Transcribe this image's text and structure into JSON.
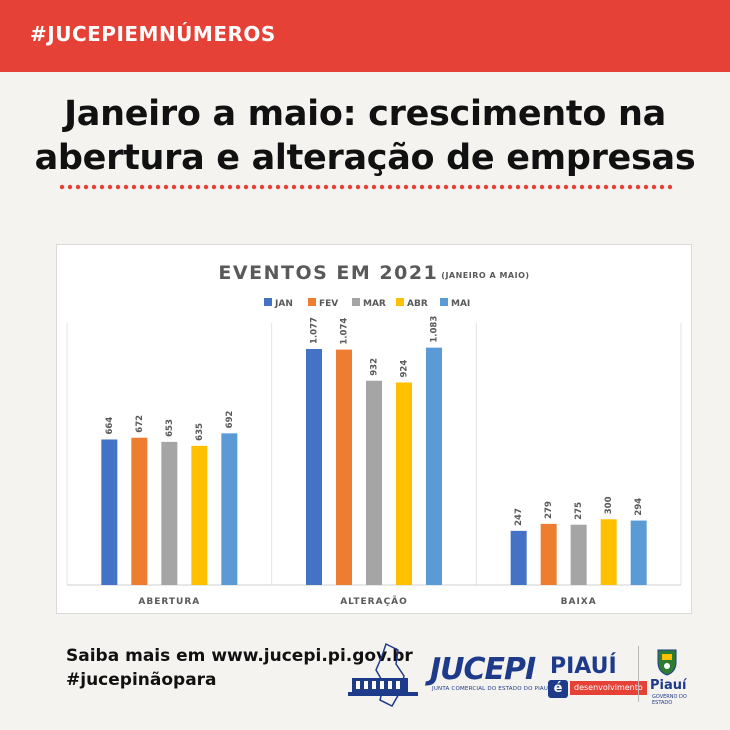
{
  "header": {
    "hashtag": "#JUCEPIEMNÚMEROS"
  },
  "headline": {
    "line1": "Janeiro a maio: crescimento na",
    "line2": "abertura e alteração de empresas"
  },
  "chart_data": {
    "type": "bar",
    "title": "EVENTOS EM 2021",
    "subtitle": "(JANEIRO A MAIO)",
    "categories": [
      "ABERTURA",
      "ALTERAÇÃO",
      "BAIXA"
    ],
    "legend_position": "top",
    "grid": false,
    "ylim": [
      0,
      1200
    ],
    "series": [
      {
        "name": "JAN",
        "color": "#4472c4",
        "values": [
          664,
          1077,
          247
        ],
        "labels": [
          "664",
          "1.077",
          "247"
        ]
      },
      {
        "name": "FEV",
        "color": "#ed7d31",
        "values": [
          672,
          1074,
          279
        ],
        "labels": [
          "672",
          "1.074",
          "279"
        ]
      },
      {
        "name": "MAR",
        "color": "#a5a5a5",
        "values": [
          653,
          932,
          275
        ],
        "labels": [
          "653",
          "932",
          "275"
        ]
      },
      {
        "name": "ABR",
        "color": "#ffc000",
        "values": [
          635,
          924,
          300
        ],
        "labels": [
          "635",
          "924",
          "300"
        ]
      },
      {
        "name": "MAI",
        "color": "#5b9bd5",
        "values": [
          692,
          1083,
          294
        ],
        "labels": [
          "692",
          "1.083",
          "294"
        ]
      }
    ]
  },
  "footer": {
    "link_text": "Saiba mais em www.jucepi.pi.gov.br",
    "hashtag": "#jucepinãopara"
  },
  "logos": {
    "jucepi": "JUCEPI",
    "jucepi_sub": "JUNTA COMERCIAL DO ESTADO DO PIAUÍ",
    "piaui": "PIAUÍ",
    "piaui_e": "é",
    "piaui_tag": "desenvolvimento",
    "gov": "Piauí",
    "gov_sub": "GOVERNO DO ESTADO"
  }
}
